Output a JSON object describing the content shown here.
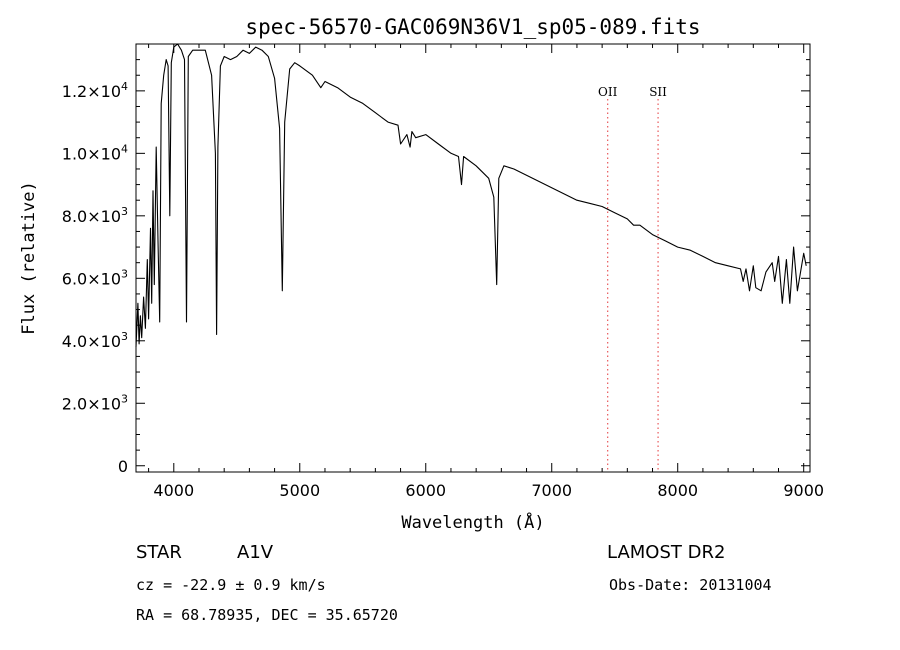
{
  "chart_data": {
    "type": "line",
    "title": "spec-56570-GAC069N36V1_sp05-089.fits",
    "xlabel": "Wavelength (Å)",
    "ylabel": "Flux (relative)",
    "xlim": [
      3700,
      9050
    ],
    "ylim": [
      -200,
      13500
    ],
    "x_ticks": [
      {
        "value": 4000,
        "label": "4000"
      },
      {
        "value": 5000,
        "label": "5000"
      },
      {
        "value": 6000,
        "label": "6000"
      },
      {
        "value": 7000,
        "label": "7000"
      },
      {
        "value": 8000,
        "label": "8000"
      },
      {
        "value": 9000,
        "label": "9000"
      }
    ],
    "y_ticks": [
      {
        "value": 0,
        "mantissa": "0",
        "exp": ""
      },
      {
        "value": 2000,
        "mantissa": "2.0×10",
        "exp": "3"
      },
      {
        "value": 4000,
        "mantissa": "4.0×10",
        "exp": "3"
      },
      {
        "value": 6000,
        "mantissa": "6.0×10",
        "exp": "3"
      },
      {
        "value": 8000,
        "mantissa": "8.0×10",
        "exp": "3"
      },
      {
        "value": 10000,
        "mantissa": "1.0×10",
        "exp": "4"
      },
      {
        "value": 12000,
        "mantissa": "1.2×10",
        "exp": "4"
      }
    ],
    "line_markers": [
      {
        "label": "OII",
        "x": 7444,
        "color": "#e8585b"
      },
      {
        "label": "SII",
        "x": 7844,
        "color": "#e8585b"
      }
    ],
    "series": [
      {
        "color": "#000000",
        "x": [
          3700,
          3715,
          3725,
          3735,
          3745,
          3760,
          3775,
          3790,
          3800,
          3815,
          3825,
          3835,
          3845,
          3860,
          3875,
          3888,
          3900,
          3920,
          3940,
          3955,
          3968,
          3980,
          4000,
          4030,
          4060,
          4085,
          4101,
          4115,
          4150,
          4200,
          4250,
          4300,
          4330,
          4340,
          4350,
          4370,
          4400,
          4450,
          4500,
          4550,
          4600,
          4650,
          4700,
          4750,
          4800,
          4840,
          4861,
          4880,
          4920,
          4960,
          5000,
          5100,
          5167,
          5200,
          5300,
          5400,
          5500,
          5600,
          5700,
          5780,
          5800,
          5850,
          5876,
          5890,
          5920,
          6000,
          6100,
          6200,
          6260,
          6284,
          6300,
          6400,
          6500,
          6540,
          6563,
          6580,
          6620,
          6700,
          6800,
          6900,
          7000,
          7100,
          7200,
          7300,
          7400,
          7500,
          7600,
          7650,
          7700,
          7800,
          7900,
          8000,
          8100,
          8200,
          8300,
          8400,
          8498,
          8520,
          8542,
          8570,
          8600,
          8620,
          8662,
          8700,
          8750,
          8770,
          8800,
          8830,
          8863,
          8890,
          8920,
          8950,
          9000,
          9020
        ],
        "y": [
          3800,
          5200,
          3900,
          4800,
          4100,
          5400,
          4400,
          6600,
          4700,
          7600,
          5200,
          8800,
          5800,
          10200,
          7200,
          4600,
          11600,
          12500,
          13000,
          12800,
          8000,
          12900,
          13400,
          13600,
          13300,
          13000,
          4600,
          13100,
          13300,
          13300,
          13300,
          12500,
          10000,
          4200,
          10200,
          12800,
          13100,
          13000,
          13100,
          13300,
          13200,
          13400,
          13300,
          13100,
          12400,
          10800,
          5600,
          11000,
          12700,
          12900,
          12800,
          12500,
          12100,
          12300,
          12100,
          11800,
          11600,
          11300,
          11000,
          10900,
          10300,
          10600,
          10200,
          10700,
          10500,
          10600,
          10300,
          10000,
          9900,
          9000,
          9900,
          9600,
          9200,
          8600,
          5800,
          9200,
          9600,
          9500,
          9300,
          9100,
          8900,
          8700,
          8500,
          8400,
          8300,
          8100,
          7900,
          7700,
          7700,
          7400,
          7200,
          7000,
          6900,
          6700,
          6500,
          6400,
          6300,
          5900,
          6300,
          5600,
          6400,
          5700,
          5600,
          6200,
          6500,
          5900,
          6700,
          5200,
          6600,
          5200,
          7000,
          5600,
          6800,
          6400
        ]
      }
    ],
    "grid": false
  },
  "info": {
    "object_type": "STAR",
    "spectral_class": "A1V",
    "survey": "LAMOST DR2",
    "cz_text": "cz = -22.9 ± 0.9 km/s",
    "obs_date": "Obs-Date: 20131004",
    "coords": "RA =  68.78935, DEC =  35.65720"
  }
}
